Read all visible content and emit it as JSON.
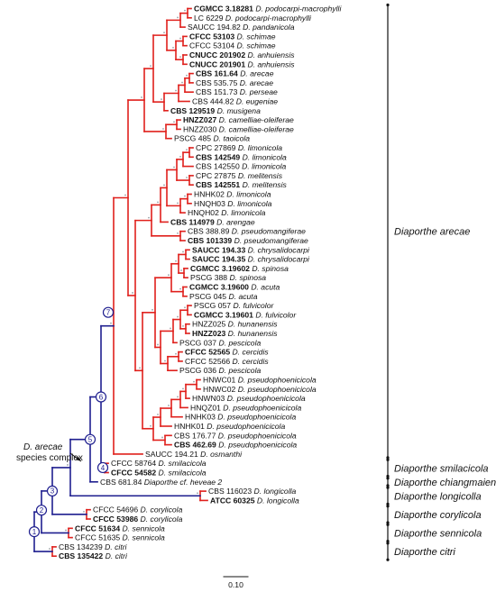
{
  "colors": {
    "red": "#e0201c",
    "blue": "#1f1f8f",
    "black": "#111111",
    "support": "#9aa0a6"
  },
  "taxa": [
    {
      "accession": "CGMCC 3.18281",
      "species": "D. podocarpi-macrophylli",
      "bold": true
    },
    {
      "accession": "LC 6229",
      "species": "D. podocarpi-macrophylli",
      "bold": false
    },
    {
      "accession": "SAUCC 194.82",
      "species": "D. pandanicola",
      "bold": false
    },
    {
      "accession": "CFCC 53103",
      "species": "D. schimae",
      "bold": true
    },
    {
      "accession": "CFCC 53104",
      "species": "D. schimae",
      "bold": false
    },
    {
      "accession": "CNUCC 201902",
      "species": "D. anhuiensis",
      "bold": true
    },
    {
      "accession": "CNUCC 201901",
      "species": "D. anhuiensis",
      "bold": true
    },
    {
      "accession": "CBS 161.64",
      "species": "D. arecae",
      "bold": true
    },
    {
      "accession": "CBS 535.75",
      "species": "D. arecae",
      "bold": false
    },
    {
      "accession": "CBS 151.73",
      "species": "D. perseae",
      "bold": false
    },
    {
      "accession": "CBS 444.82",
      "species": "D. eugeniae",
      "bold": false
    },
    {
      "accession": "CBS 129519",
      "species": "D. musigena",
      "bold": true
    },
    {
      "accession": "HNZZ027",
      "species": "D. camelliae-oleiferae",
      "bold": true
    },
    {
      "accession": "HNZZ030",
      "species": "D. camelliae-oleiferae",
      "bold": false
    },
    {
      "accession": "PSCG 485",
      "species": "D. taoicola",
      "bold": false
    },
    {
      "accession": "CPC 27869",
      "species": "D. limonicola",
      "bold": false
    },
    {
      "accession": "CBS 142549",
      "species": "D. limonicola",
      "bold": true
    },
    {
      "accession": "CBS 142550",
      "species": "D. limonicola",
      "bold": false
    },
    {
      "accession": "CPC 27875",
      "species": "D. melitensis",
      "bold": false
    },
    {
      "accession": "CBS 142551",
      "species": "D. melitensis",
      "bold": true
    },
    {
      "accession": "HNHK02",
      "species": "D. limonicola",
      "bold": false
    },
    {
      "accession": "HNQH03",
      "species": "D. limonicola",
      "bold": false
    },
    {
      "accession": "HNQH02",
      "species": "D. limonicola",
      "bold": false
    },
    {
      "accession": "CBS 114979",
      "species": "D. arengae",
      "bold": true
    },
    {
      "accession": "CBS 388.89",
      "species": "D. pseudomangiferae",
      "bold": false
    },
    {
      "accession": "CBS 101339",
      "species": "D. pseudomangiferae",
      "bold": true
    },
    {
      "accession": "SAUCC 194.33",
      "species": "D. chrysalidocarpi",
      "bold": true
    },
    {
      "accession": "SAUCC 194.35",
      "species": "D. chrysalidocarpi",
      "bold": true
    },
    {
      "accession": "CGMCC 3.19602",
      "species": "D. spinosa",
      "bold": true
    },
    {
      "accession": "PSCG 388",
      "species": "D. spinosa",
      "bold": false
    },
    {
      "accession": "CGMCC 3.19600",
      "species": "D. acuta",
      "bold": true
    },
    {
      "accession": "PSCG 045",
      "species": "D. acuta",
      "bold": false
    },
    {
      "accession": "PSCG 057",
      "species": "D. fulvicolor",
      "bold": false
    },
    {
      "accession": "CGMCC 3.19601",
      "species": "D. fulvicolor",
      "bold": true
    },
    {
      "accession": "HNZZ025",
      "species": "D. hunanensis",
      "bold": false
    },
    {
      "accession": "HNZZ023",
      "species": "D. hunanensis",
      "bold": true
    },
    {
      "accession": "PSCG 037",
      "species": "D. pescicola",
      "bold": false
    },
    {
      "accession": "CFCC 52565",
      "species": "D. cercidis",
      "bold": true
    },
    {
      "accession": "CFCC 52566",
      "species": "D. cercidis",
      "bold": false
    },
    {
      "accession": "PSCG 036",
      "species": "D. pescicola",
      "bold": false
    },
    {
      "accession": "HNWC01",
      "species": "D. pseudophoenicicola",
      "bold": false
    },
    {
      "accession": "HNWC02",
      "species": "D. pseudophoenicicola",
      "bold": false
    },
    {
      "accession": "HNWN03",
      "species": "D. pseudophoenicicola",
      "bold": false
    },
    {
      "accession": "HNQZ01",
      "species": "D. pseudophoenicicola",
      "bold": false
    },
    {
      "accession": "HNHK03",
      "species": "D. pseudophoenicicola",
      "bold": false
    },
    {
      "accession": "HNHK01",
      "species": "D. pseudophoenicicola",
      "bold": false
    },
    {
      "accession": "CBS 176.77",
      "species": "D. pseudophoenicicola",
      "bold": false
    },
    {
      "accession": "CBS 462.69",
      "species": "D. pseudophoenicicola",
      "bold": true
    },
    {
      "accession": "SAUCC 194.21",
      "species": "D. osmanthi",
      "bold": false
    },
    {
      "accession": "CFCC 58764",
      "species": "D. smilacicola",
      "bold": false
    },
    {
      "accession": "CFCC 54582",
      "species": "D. smilacicola",
      "bold": true
    },
    {
      "accession": "CBS 681.84",
      "species": "Diaporthe cf. heveae 2",
      "bold": false
    },
    {
      "accession": "CBS 116023",
      "species": "D. longicolla",
      "bold": false
    },
    {
      "accession": "ATCC 60325",
      "species": "D. longicolla",
      "bold": true
    },
    {
      "accession": "CFCC 54696",
      "species": "D. corylicola",
      "bold": false
    },
    {
      "accession": "CFCC 53986",
      "species": "D. corylicola",
      "bold": true
    },
    {
      "accession": "CFCC 51634",
      "species": "D. sennicola",
      "bold": true
    },
    {
      "accession": "CFCC 51635",
      "species": "D. sennicola",
      "bold": false
    },
    {
      "accession": "CBS 134239",
      "species": "D. citri",
      "bold": false
    },
    {
      "accession": "CBS 135422",
      "species": "D. citri",
      "bold": true
    }
  ],
  "clades": [
    {
      "label": "Diaporthe arecae"
    },
    {
      "label": "Diaporthe smilacicola"
    },
    {
      "label": "Diaporthe chiangmaiensis"
    },
    {
      "label": "Diaporthe longicolla"
    },
    {
      "label": "Diaporthe corylicola"
    },
    {
      "label": "Diaporthe sennicola"
    },
    {
      "label": "Diaporthe citri"
    }
  ],
  "node_labels": [
    "1",
    "2",
    "3",
    "4",
    "5",
    "6",
    "7"
  ],
  "complex_label": {
    "line1": "D. arecae",
    "line2": "species complex"
  },
  "scale_bar": {
    "label": "0.10"
  }
}
